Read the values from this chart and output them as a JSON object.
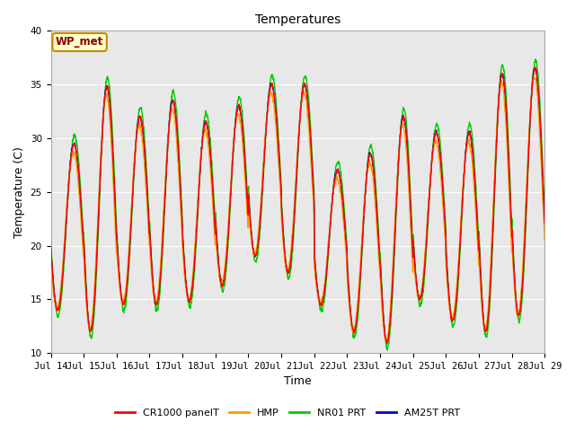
{
  "title": "Temperatures",
  "xlabel": "Time",
  "ylabel": "Temperature (C)",
  "ylim": [
    10,
    40
  ],
  "xlim": [
    0,
    360
  ],
  "fig_bg_color": "#ffffff",
  "plot_bg_color": "#e8e8e8",
  "grid_color": "#ffffff",
  "annotation_text": "WP_met",
  "annotation_box_color": "#ffffcc",
  "annotation_border_color": "#cc8800",
  "annotation_text_color": "#880000",
  "series_colors": [
    "#ff0000",
    "#ff9900",
    "#00cc00",
    "#0000cc"
  ],
  "series_labels": [
    "CR1000 panelT",
    "HMP",
    "NR01 PRT",
    "AM25T PRT"
  ],
  "x_tick_labels": [
    "Jul 14",
    "Jul 15",
    "Jul 16",
    "Jul 17",
    "Jul 18",
    "Jul 19",
    "Jul 20",
    "Jul 21",
    "Jul 22",
    "Jul 23",
    "Jul 24",
    "Jul 25",
    "Jul 26",
    "Jul 27",
    "Jul 28",
    "Jul 29"
  ],
  "x_tick_positions": [
    0,
    24,
    48,
    72,
    96,
    120,
    144,
    168,
    192,
    216,
    240,
    264,
    288,
    312,
    336,
    360
  ],
  "line_width": 1.0,
  "day_mins": [
    14.0,
    12.0,
    14.5,
    14.5,
    14.8,
    16.3,
    19.0,
    17.5,
    14.5,
    12.0,
    11.0,
    15.0,
    13.0,
    12.0,
    13.5
  ],
  "day_maxs": [
    29.5,
    34.8,
    32.0,
    33.5,
    31.5,
    33.0,
    35.0,
    35.0,
    27.0,
    28.5,
    32.0,
    30.5,
    30.5,
    36.0,
    36.5
  ]
}
